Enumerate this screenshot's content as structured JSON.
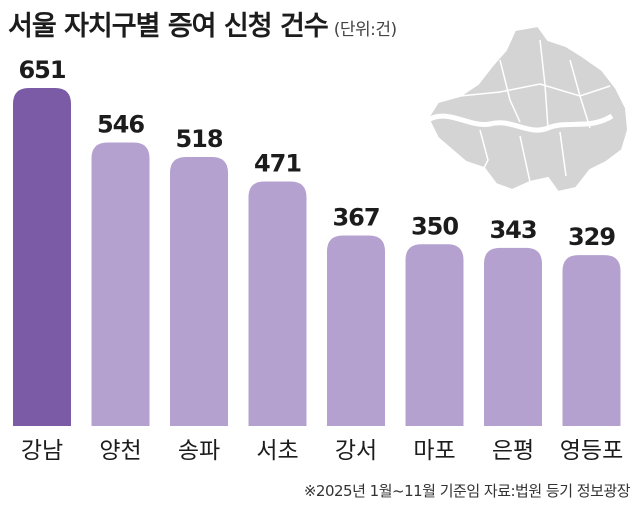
{
  "header": {
    "title": "서울 자치구별 증여 신청 건수",
    "unit": "(단위:건)"
  },
  "footer": {
    "source": "※2025년 1월~11월 기준임 자료:법원 등기 정보광장"
  },
  "colors": {
    "highlight_bar": "#7b5aa6",
    "bar": "#b4a1cf",
    "map_fill": "#d4d4d4",
    "river": "#ffffff",
    "text": "#1c1c1c"
  },
  "chart_data": {
    "type": "bar",
    "title": "서울 자치구별 증여 신청 건수",
    "unit": "(단위:건)",
    "categories": [
      "강남",
      "양천",
      "송파",
      "서초",
      "강서",
      "마포",
      "은평",
      "영등포"
    ],
    "values": [
      651,
      546,
      518,
      471,
      367,
      350,
      343,
      329
    ],
    "highlight_index": 0,
    "ylim": [
      0,
      680
    ],
    "grid": false,
    "legend": "none"
  }
}
